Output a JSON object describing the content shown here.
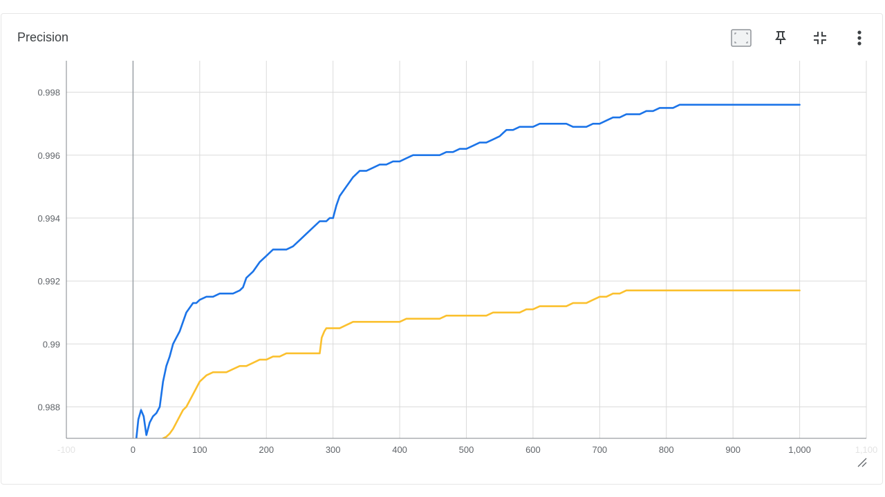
{
  "card": {
    "title": "Precision"
  },
  "toolbar": {
    "icons": [
      "fit-domain-icon",
      "pin-icon",
      "collapse-icon",
      "more-vert-icon"
    ]
  },
  "colors": {
    "series_blue": "#1a73e8",
    "series_yellow": "#fbc02d",
    "grid": "#dadada",
    "axis_text": "#5f6368"
  },
  "chart_data": {
    "type": "line",
    "title": "",
    "xlabel": "",
    "ylabel": "",
    "xlim": [
      -100,
      1100
    ],
    "ylim": [
      0.987,
      0.999
    ],
    "x_ticks": [
      -100,
      0,
      100,
      200,
      300,
      400,
      500,
      600,
      700,
      800,
      900,
      1000,
      1100
    ],
    "x_tick_labels": [
      "-100",
      "0",
      "100",
      "200",
      "300",
      "400",
      "500",
      "600",
      "700",
      "800",
      "900",
      "1,000",
      "1,100"
    ],
    "y_ticks": [
      0.988,
      0.99,
      0.992,
      0.994,
      0.996,
      0.998
    ],
    "y_tick_labels": [
      "0.988",
      "0.99",
      "0.992",
      "0.994",
      "0.996",
      "0.998"
    ],
    "grid": true,
    "legend": "none",
    "series": [
      {
        "color": "#1a73e8",
        "x": [
          5,
          8,
          12,
          16,
          20,
          25,
          30,
          35,
          40,
          45,
          50,
          55,
          60,
          65,
          70,
          75,
          80,
          90,
          95,
          100,
          110,
          120,
          130,
          140,
          150,
          160,
          165,
          170,
          175,
          180,
          190,
          200,
          210,
          220,
          230,
          240,
          250,
          260,
          270,
          280,
          290,
          295,
          300,
          305,
          310,
          320,
          330,
          340,
          350,
          360,
          370,
          380,
          390,
          400,
          410,
          420,
          430,
          440,
          450,
          460,
          470,
          480,
          490,
          500,
          510,
          520,
          530,
          540,
          550,
          555,
          560,
          570,
          580,
          590,
          600,
          610,
          620,
          630,
          640,
          650,
          660,
          670,
          680,
          690,
          700,
          710,
          720,
          730,
          740,
          750,
          760,
          770,
          780,
          790,
          800,
          810,
          820,
          830,
          835,
          850,
          900,
          950,
          1000
        ],
        "y": [
          0.987,
          0.9876,
          0.9879,
          0.9877,
          0.9871,
          0.9875,
          0.9877,
          0.9878,
          0.988,
          0.9888,
          0.9893,
          0.9896,
          0.99,
          0.9902,
          0.9904,
          0.9907,
          0.991,
          0.9913,
          0.9913,
          0.9914,
          0.9915,
          0.9915,
          0.9916,
          0.9916,
          0.9916,
          0.9917,
          0.9918,
          0.9921,
          0.9922,
          0.9923,
          0.9926,
          0.9928,
          0.993,
          0.993,
          0.993,
          0.9931,
          0.9933,
          0.9935,
          0.9937,
          0.9939,
          0.9939,
          0.994,
          0.994,
          0.9944,
          0.9947,
          0.995,
          0.9953,
          0.9955,
          0.9955,
          0.9956,
          0.9957,
          0.9957,
          0.9958,
          0.9958,
          0.9959,
          0.996,
          0.996,
          0.996,
          0.996,
          0.996,
          0.9961,
          0.9961,
          0.9962,
          0.9962,
          0.9963,
          0.9964,
          0.9964,
          0.9965,
          0.9966,
          0.9967,
          0.9968,
          0.9968,
          0.9969,
          0.9969,
          0.9969,
          0.997,
          0.997,
          0.997,
          0.997,
          0.997,
          0.9969,
          0.9969,
          0.9969,
          0.997,
          0.997,
          0.9971,
          0.9972,
          0.9972,
          0.9973,
          0.9973,
          0.9973,
          0.9974,
          0.9974,
          0.9975,
          0.9975,
          0.9975,
          0.9976,
          0.9976,
          0.9976,
          0.9976,
          0.9976,
          0.9976,
          0.9976
        ]
      },
      {
        "color": "#fbc02d",
        "x": [
          45,
          50,
          55,
          60,
          65,
          70,
          75,
          80,
          90,
          100,
          110,
          120,
          130,
          140,
          150,
          160,
          170,
          180,
          190,
          200,
          210,
          220,
          230,
          240,
          250,
          260,
          270,
          280,
          283,
          287,
          290,
          300,
          310,
          320,
          330,
          340,
          350,
          360,
          370,
          380,
          390,
          400,
          410,
          420,
          430,
          440,
          450,
          460,
          470,
          480,
          490,
          500,
          510,
          520,
          530,
          540,
          550,
          560,
          570,
          580,
          590,
          600,
          610,
          620,
          630,
          640,
          650,
          660,
          670,
          680,
          690,
          700,
          710,
          720,
          730,
          740,
          750,
          760,
          770,
          780,
          790,
          800,
          810,
          820,
          830,
          850,
          900,
          950,
          1000
        ],
        "y": [
          0.987,
          0.98705,
          0.98715,
          0.9873,
          0.9875,
          0.9877,
          0.9879,
          0.988,
          0.9884,
          0.9888,
          0.989,
          0.9891,
          0.9891,
          0.9891,
          0.9892,
          0.9893,
          0.9893,
          0.9894,
          0.9895,
          0.9895,
          0.9896,
          0.9896,
          0.9897,
          0.9897,
          0.9897,
          0.9897,
          0.9897,
          0.9897,
          0.9902,
          0.9904,
          0.9905,
          0.9905,
          0.9905,
          0.9906,
          0.9907,
          0.9907,
          0.9907,
          0.9907,
          0.9907,
          0.9907,
          0.9907,
          0.9907,
          0.9908,
          0.9908,
          0.9908,
          0.9908,
          0.9908,
          0.9908,
          0.9909,
          0.9909,
          0.9909,
          0.9909,
          0.9909,
          0.9909,
          0.9909,
          0.991,
          0.991,
          0.991,
          0.991,
          0.991,
          0.9911,
          0.9911,
          0.9912,
          0.9912,
          0.9912,
          0.9912,
          0.9912,
          0.9913,
          0.9913,
          0.9913,
          0.9914,
          0.9915,
          0.9915,
          0.9916,
          0.9916,
          0.9917,
          0.9917,
          0.9917,
          0.9917,
          0.9917,
          0.9917,
          0.9917,
          0.9917,
          0.9917,
          0.9917,
          0.9917,
          0.9917,
          0.9917,
          0.9917
        ]
      }
    ]
  }
}
